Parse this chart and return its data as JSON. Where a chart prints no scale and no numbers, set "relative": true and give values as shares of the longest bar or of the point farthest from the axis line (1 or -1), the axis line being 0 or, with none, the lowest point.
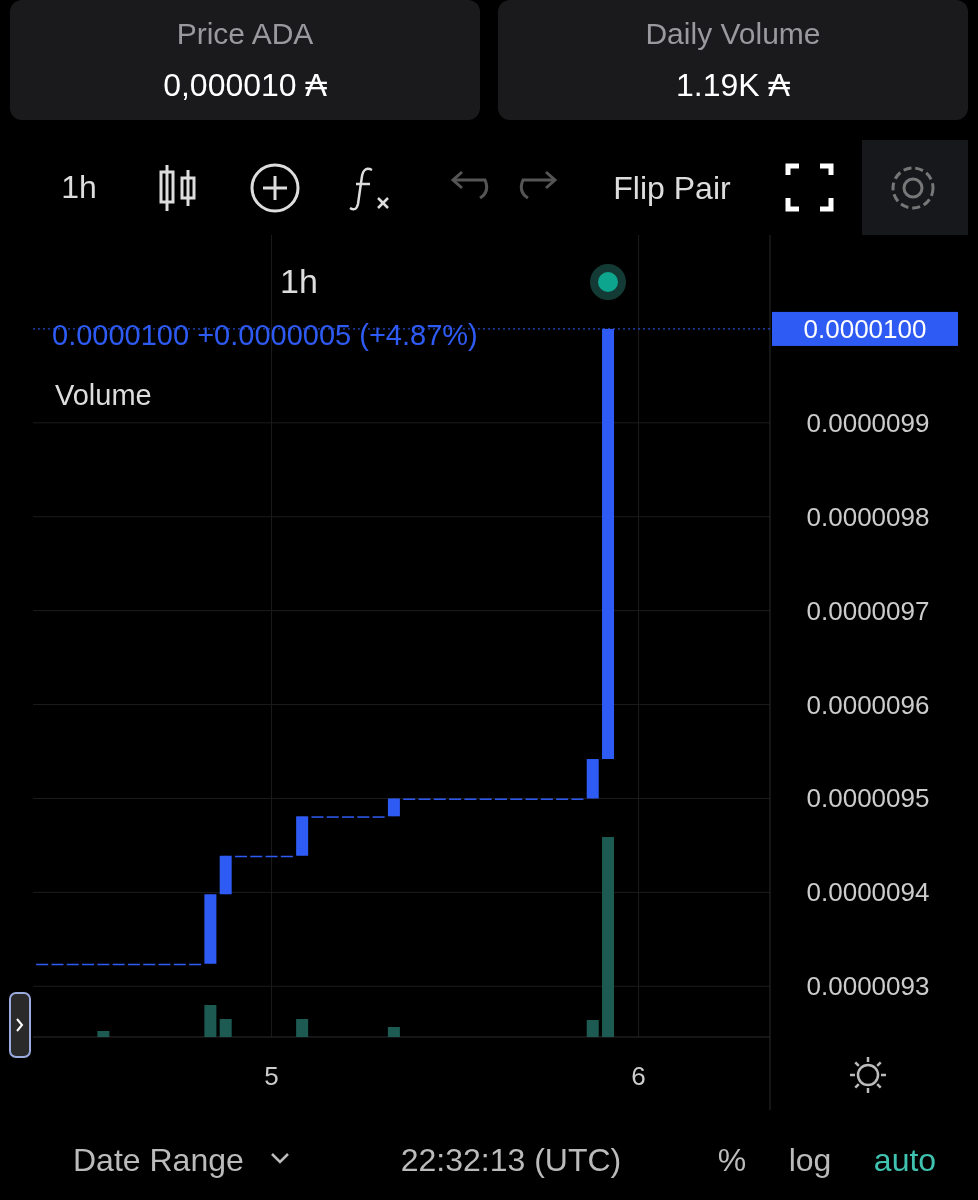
{
  "chart_data": [
    {
      "type": "candlestick",
      "title": "1h",
      "x": [
        4.375,
        4.4167,
        4.4583,
        4.5,
        4.5417,
        4.5833,
        4.625,
        4.6667,
        4.7083,
        4.75,
        4.7917,
        4.8333,
        4.875,
        4.9167,
        4.9583,
        5,
        5.0417,
        5.0833,
        5.125,
        5.1667,
        5.2083,
        5.25,
        5.2917,
        5.3333,
        5.375,
        5.4167,
        5.4583,
        5.5,
        5.5417,
        5.5833,
        5.625,
        5.6667,
        5.7083,
        5.75,
        5.7917,
        5.8333,
        5.875,
        5.9167
      ],
      "ohlc": [
        [
          9.324e-06,
          9.324e-06,
          9.324e-06,
          9.324e-06
        ],
        [
          9.324e-06,
          9.324e-06,
          9.324e-06,
          9.324e-06
        ],
        [
          9.324e-06,
          9.324e-06,
          9.324e-06,
          9.324e-06
        ],
        [
          9.324e-06,
          9.324e-06,
          9.324e-06,
          9.324e-06
        ],
        [
          9.324e-06,
          9.324e-06,
          9.324e-06,
          9.324e-06
        ],
        [
          9.324e-06,
          9.324e-06,
          9.324e-06,
          9.324e-06
        ],
        [
          9.324e-06,
          9.324e-06,
          9.324e-06,
          9.324e-06
        ],
        [
          9.324e-06,
          9.324e-06,
          9.324e-06,
          9.324e-06
        ],
        [
          9.324e-06,
          9.324e-06,
          9.324e-06,
          9.324e-06
        ],
        [
          9.324e-06,
          9.324e-06,
          9.324e-06,
          9.324e-06
        ],
        [
          9.324e-06,
          9.324e-06,
          9.324e-06,
          9.324e-06
        ],
        [
          9.324e-06,
          9.398e-06,
          9.324e-06,
          9.398e-06
        ],
        [
          9.398e-06,
          9.439e-06,
          9.398e-06,
          9.439e-06
        ],
        [
          9.439e-06,
          9.439e-06,
          9.439e-06,
          9.439e-06
        ],
        [
          9.439e-06,
          9.439e-06,
          9.439e-06,
          9.439e-06
        ],
        [
          9.439e-06,
          9.439e-06,
          9.439e-06,
          9.439e-06
        ],
        [
          9.439e-06,
          9.439e-06,
          9.439e-06,
          9.439e-06
        ],
        [
          9.439e-06,
          9.481e-06,
          9.439e-06,
          9.481e-06
        ],
        [
          9.481e-06,
          9.481e-06,
          9.481e-06,
          9.481e-06
        ],
        [
          9.481e-06,
          9.481e-06,
          9.481e-06,
          9.481e-06
        ],
        [
          9.481e-06,
          9.481e-06,
          9.481e-06,
          9.481e-06
        ],
        [
          9.481e-06,
          9.481e-06,
          9.481e-06,
          9.481e-06
        ],
        [
          9.481e-06,
          9.481e-06,
          9.481e-06,
          9.481e-06
        ],
        [
          9.481e-06,
          9.5e-06,
          9.481e-06,
          9.5e-06
        ],
        [
          9.5e-06,
          9.5e-06,
          9.5e-06,
          9.5e-06
        ],
        [
          9.5e-06,
          9.5e-06,
          9.5e-06,
          9.5e-06
        ],
        [
          9.5e-06,
          9.5e-06,
          9.5e-06,
          9.5e-06
        ],
        [
          9.5e-06,
          9.5e-06,
          9.5e-06,
          9.5e-06
        ],
        [
          9.5e-06,
          9.5e-06,
          9.5e-06,
          9.5e-06
        ],
        [
          9.5e-06,
          9.5e-06,
          9.5e-06,
          9.5e-06
        ],
        [
          9.5e-06,
          9.5e-06,
          9.5e-06,
          9.5e-06
        ],
        [
          9.5e-06,
          9.5e-06,
          9.5e-06,
          9.5e-06
        ],
        [
          9.5e-06,
          9.5e-06,
          9.5e-06,
          9.5e-06
        ],
        [
          9.5e-06,
          9.5e-06,
          9.5e-06,
          9.5e-06
        ],
        [
          9.5e-06,
          9.5e-06,
          9.5e-06,
          9.5e-06
        ],
        [
          9.5e-06,
          9.5e-06,
          9.5e-06,
          9.5e-06
        ],
        [
          9.5e-06,
          9.542e-06,
          9.5e-06,
          9.542e-06
        ],
        [
          9.542e-06,
          1e-05,
          9.542e-06,
          1e-05
        ]
      ],
      "color": "#2f5bf5",
      "xlim": [
        4.35,
        6.358
      ],
      "xticks": [
        5,
        6
      ],
      "ylim": [
        9.246e-06,
        1.01e-05
      ],
      "yticks": [
        {
          "value": 9.3e-06,
          "label": "0.0000093"
        },
        {
          "value": 9.4e-06,
          "label": "0.0000094"
        },
        {
          "value": 9.5e-06,
          "label": "0.0000095"
        },
        {
          "value": 9.6e-06,
          "label": "0.0000096"
        },
        {
          "value": 9.7e-06,
          "label": "0.0000097"
        },
        {
          "value": 9.8e-06,
          "label": "0.0000098"
        },
        {
          "value": 9.9e-06,
          "label": "0.0000099"
        }
      ],
      "grid": true,
      "ref_lines": [
        {
          "axis": "y",
          "value": 1e-05,
          "label": "0.0000100",
          "color": "#2f5bf5",
          "line_style": "dotted"
        }
      ],
      "annotations": [
        "Price ADA",
        "0,000010 ₳",
        "Daily Volume",
        "1.19K ₳",
        "1h",
        "Flip Pair",
        "0.0000100  +0.0000005 (+4.87%)",
        "Date Range",
        "22:32:13 (UTC)",
        "%",
        "log",
        "auto"
      ]
    },
    {
      "type": "bar",
      "relative": true,
      "legend": "top left",
      "xlim": [
        4.35,
        6.358
      ],
      "x": [
        4.5417,
        4.8333,
        4.875,
        5.0833,
        5.3333,
        5.875,
        5.9167
      ],
      "series": [
        {
          "name": "Volume",
          "color": "#1d5b52",
          "values": [
            0.03,
            0.16,
            0.09,
            0.09,
            0.05,
            0.085,
            1
          ]
        }
      ]
    }
  ]
}
